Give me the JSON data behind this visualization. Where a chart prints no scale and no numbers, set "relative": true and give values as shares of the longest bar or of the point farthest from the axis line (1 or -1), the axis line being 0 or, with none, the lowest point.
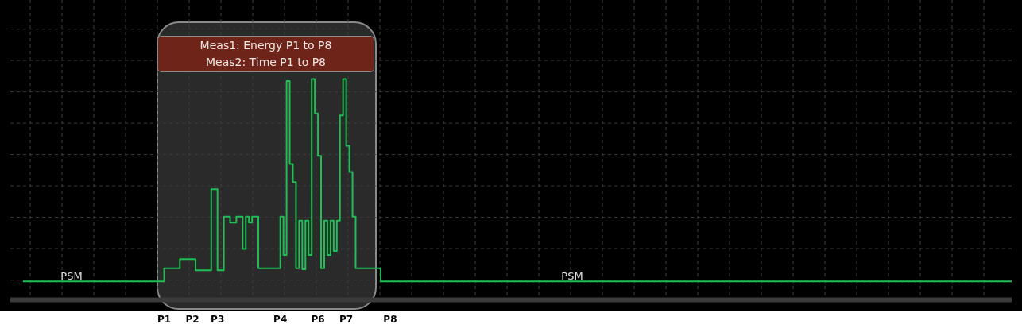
{
  "chart_data": {
    "type": "step",
    "relative": true,
    "categories": [
      null,
      null,
      null,
      null,
      null,
      null,
      null,
      null,
      null,
      null,
      null,
      null,
      null,
      null,
      null,
      null,
      null,
      null,
      null,
      null,
      null,
      null,
      null,
      null,
      null,
      null,
      null,
      null,
      null,
      null,
      null,
      null,
      null,
      null,
      null,
      null,
      null,
      null,
      null,
      null,
      null,
      null,
      null,
      null,
      null,
      null,
      null,
      null,
      null,
      "P1",
      null,
      null,
      null,
      null,
      null,
      null,
      null,
      null,
      "P2",
      null,
      null,
      null,
      null,
      null,
      null,
      null,
      "P3",
      null,
      null,
      null,
      null,
      null,
      null,
      null,
      null,
      null,
      null,
      null,
      null,
      null,
      null,
      null,
      null,
      null,
      null,
      null,
      "P4",
      null,
      null,
      null,
      null,
      null,
      null,
      null,
      null,
      null,
      null,
      null,
      "P6",
      null,
      null,
      null,
      null,
      null,
      null,
      null,
      null,
      "P7",
      null,
      null,
      null,
      null,
      null,
      null,
      null,
      null,
      null,
      null,
      null,
      null,
      null,
      "P8",
      null,
      null,
      null,
      null,
      null,
      null,
      null,
      null,
      null,
      null,
      null,
      null,
      null,
      null,
      null,
      null,
      null,
      null,
      null,
      null,
      null,
      null,
      null,
      null,
      null,
      null,
      null,
      null,
      null,
      null,
      null,
      null,
      null,
      null,
      null,
      null,
      null,
      null,
      null,
      null,
      null,
      null,
      null,
      null,
      null,
      null,
      null,
      null,
      null,
      null,
      null,
      null,
      null,
      null,
      null,
      null,
      null,
      null,
      null,
      null,
      null,
      null,
      null,
      null,
      null,
      null,
      null,
      null,
      null,
      null,
      null,
      null,
      null,
      null,
      null,
      null,
      null,
      null,
      null,
      null,
      null,
      null,
      null,
      null,
      null,
      null,
      null,
      null,
      null,
      null,
      null,
      null,
      null,
      null,
      null,
      null,
      null,
      null,
      null,
      null,
      null,
      null,
      null,
      null,
      null,
      null,
      null,
      null,
      null,
      null,
      null,
      null,
      null,
      null,
      null,
      null,
      null,
      null,
      null,
      null,
      null,
      null,
      null,
      null,
      null,
      null,
      null,
      null,
      null,
      null,
      null,
      null,
      null,
      null,
      null,
      null,
      null,
      null,
      null,
      null,
      null,
      null,
      null,
      null,
      null,
      null,
      null,
      null,
      null,
      null,
      null,
      null,
      null,
      null,
      null,
      null,
      null,
      null,
      null,
      null,
      null,
      null,
      null,
      null,
      null,
      null,
      null,
      null,
      null,
      null,
      null,
      null,
      null,
      null,
      null,
      null,
      null,
      null,
      null,
      null,
      null,
      null,
      null,
      null,
      null,
      null,
      null,
      null,
      null,
      null,
      null,
      null,
      null,
      null,
      null,
      null,
      null,
      null
    ],
    "series": [
      {
        "color": "#1fbf55",
        "values": [
          null,
          null,
          null,
          null,
          0,
          0,
          0,
          0,
          0,
          0,
          0,
          0,
          0,
          0,
          0,
          0,
          0,
          0,
          0,
          0,
          0,
          0,
          0,
          0,
          0,
          0,
          0,
          0,
          0,
          0,
          0,
          0,
          0,
          0,
          0,
          0,
          0,
          0,
          0,
          0,
          0,
          0,
          0,
          0,
          0,
          0,
          0,
          0,
          0,
          0.065,
          0.065,
          0.065,
          0.065,
          0.065,
          0.11,
          0.11,
          0.11,
          0.11,
          0.11,
          0.055,
          0.055,
          0.055,
          0.055,
          0.055,
          0.455,
          0.455,
          0.055,
          0.055,
          0.32,
          0.32,
          0.29,
          0.29,
          0.32,
          0.32,
          0.16,
          0.32,
          0.29,
          0.32,
          0.32,
          0.065,
          0.065,
          0.065,
          0.065,
          0.065,
          0.065,
          0.065,
          0.32,
          0.13,
          0.99,
          0.58,
          0.49,
          0.065,
          0.3,
          0.06,
          0.3,
          0.13,
          1.0,
          0.83,
          0.62,
          0.065,
          0.3,
          0.13,
          0.3,
          0.15,
          0.3,
          0.82,
          1.0,
          0.67,
          0.54,
          0.32,
          0.065,
          0.065,
          0.065,
          0.065,
          0.065,
          0.065,
          0.065,
          0.065,
          0,
          0,
          0,
          0,
          0,
          0,
          0,
          0,
          0,
          0,
          0,
          0,
          0,
          0,
          0,
          0,
          0,
          0,
          0,
          0,
          0,
          0,
          0,
          0,
          0,
          0,
          0,
          0,
          0,
          0,
          0,
          0,
          0,
          0,
          0,
          0,
          0,
          0,
          0,
          0,
          0,
          0,
          0,
          0,
          0,
          0,
          0,
          0,
          0,
          0,
          0,
          0,
          0,
          0,
          0,
          0,
          0,
          0,
          0,
          0,
          0,
          0,
          0,
          0,
          0,
          0,
          0,
          0,
          0,
          0,
          0,
          0,
          0,
          0,
          0,
          0,
          0,
          0,
          0,
          0,
          0,
          0,
          0,
          0,
          0,
          0,
          0,
          0,
          0,
          0,
          0,
          0,
          0,
          0,
          0,
          0,
          0,
          0,
          0,
          0,
          0,
          0,
          0,
          0,
          0,
          0,
          0,
          0,
          0,
          0,
          0,
          0,
          0,
          0,
          0,
          0,
          0,
          0,
          0,
          0,
          0,
          0,
          0,
          0,
          0,
          0,
          0,
          0,
          0,
          0,
          0,
          0,
          0,
          0,
          0,
          0,
          0,
          0,
          0,
          0,
          0,
          0,
          0,
          0,
          0,
          0,
          0,
          0,
          0,
          0,
          0,
          0,
          0,
          0,
          0,
          0,
          0,
          0,
          0,
          0,
          0,
          0,
          0,
          0,
          0,
          0,
          0,
          0,
          0,
          0,
          0,
          0,
          0,
          0,
          0,
          0,
          0,
          0,
          0,
          0,
          0,
          0,
          0,
          0,
          0,
          0,
          0,
          0,
          0,
          0,
          0,
          0,
          0,
          0,
          0,
          0,
          0,
          0,
          0,
          0,
          0,
          0
        ]
      }
    ],
    "tick_labels": "x",
    "annotations": [
      "Meas1: Energy P1 to P8",
      "Meas2: Time P1 to P8",
      "PSM",
      "PSM"
    ],
    "grid": true,
    "legend": false,
    "marker": "none",
    "line_style": "solid"
  }
}
